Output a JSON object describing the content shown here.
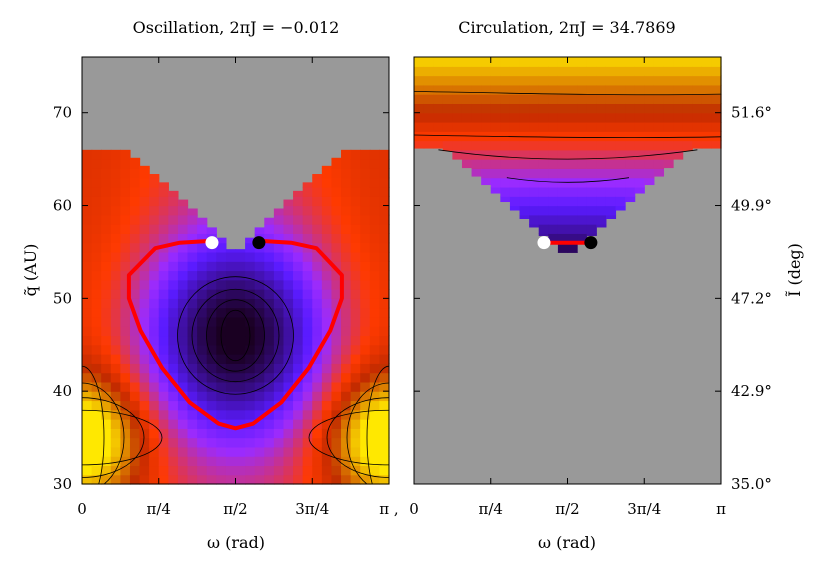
{
  "chart_data": [
    {
      "type": "heatmap",
      "title": "Oscillation,  2πJ = −0.012",
      "xlabel": "ω (rad)",
      "ylabel": "q̃ (AU)",
      "xlim": [
        0,
        3.14159
      ],
      "ylim": [
        30,
        76
      ],
      "x_ticks": [
        0,
        0.7854,
        1.5708,
        2.3562,
        3.14159
      ],
      "x_tick_labels": [
        "0",
        "π/4",
        "π/2",
        "3π/4",
        "π ,"
      ],
      "y_ticks": [
        30,
        40,
        50,
        60,
        70
      ],
      "y_tick_labels": [
        "30",
        "40",
        "50",
        "60",
        "70"
      ],
      "colormap": [
        "#1a0022",
        "#5a1bff",
        "#9a2bff",
        "#ff3a00",
        "#c02a00",
        "#ffe800"
      ],
      "forbidden_color": "#999999",
      "forbidden_edge": {
        "x_step": 0.098,
        "y_min_center": 54.5,
        "y_max_edge": 66
      },
      "trajectory": {
        "color": "#ff0000",
        "points": [
          [
            1.33,
            56.2
          ],
          [
            1.0,
            56.0
          ],
          [
            0.75,
            55.4
          ],
          [
            0.48,
            52.5
          ],
          [
            0.48,
            50.0
          ],
          [
            0.6,
            46.5
          ],
          [
            0.82,
            42.5
          ],
          [
            1.1,
            38.8
          ],
          [
            1.4,
            36.5
          ],
          [
            1.5708,
            36.0
          ],
          [
            1.75,
            36.5
          ],
          [
            2.04,
            38.8
          ],
          [
            2.32,
            42.5
          ],
          [
            2.54,
            46.5
          ],
          [
            2.66,
            50.0
          ],
          [
            2.66,
            52.5
          ],
          [
            2.4,
            55.4
          ],
          [
            2.14,
            56.0
          ],
          [
            1.81,
            56.2
          ]
        ],
        "start_marker": {
          "x": 1.33,
          "y": 56.0,
          "color": "#ffffff"
        },
        "end_marker": {
          "x": 1.81,
          "y": 56.0,
          "color": "#000000"
        }
      }
    },
    {
      "type": "heatmap",
      "title": "Circulation,  2πJ = 34.7869",
      "xlabel": "ω (rad)",
      "ylabel": "Ĩ (deg)",
      "xlim": [
        0,
        3.14159
      ],
      "y_ticks_right": [
        {
          "label": "35.0°",
          "q": 30
        },
        {
          "label": "42.9°",
          "q": 40
        },
        {
          "label": "47.2°",
          "q": 50
        },
        {
          "label": "49.9°",
          "q": 60
        },
        {
          "label": "51.6°",
          "q": 70
        }
      ],
      "x_ticks": [
        0,
        0.7854,
        1.5708,
        2.3562,
        3.14159
      ],
      "x_tick_labels": [
        "0",
        "π/4",
        "π/2",
        "3π/4",
        "π"
      ],
      "forbidden_color": "#999999",
      "trajectory": {
        "color": "#ff0000",
        "points": [
          [
            1.33,
            56.0
          ],
          [
            1.81,
            56.0
          ]
        ],
        "start_marker": {
          "x": 1.33,
          "y": 56.0,
          "color": "#ffffff"
        },
        "end_marker": {
          "x": 1.81,
          "y": 56.0,
          "color": "#000000"
        }
      }
    }
  ]
}
